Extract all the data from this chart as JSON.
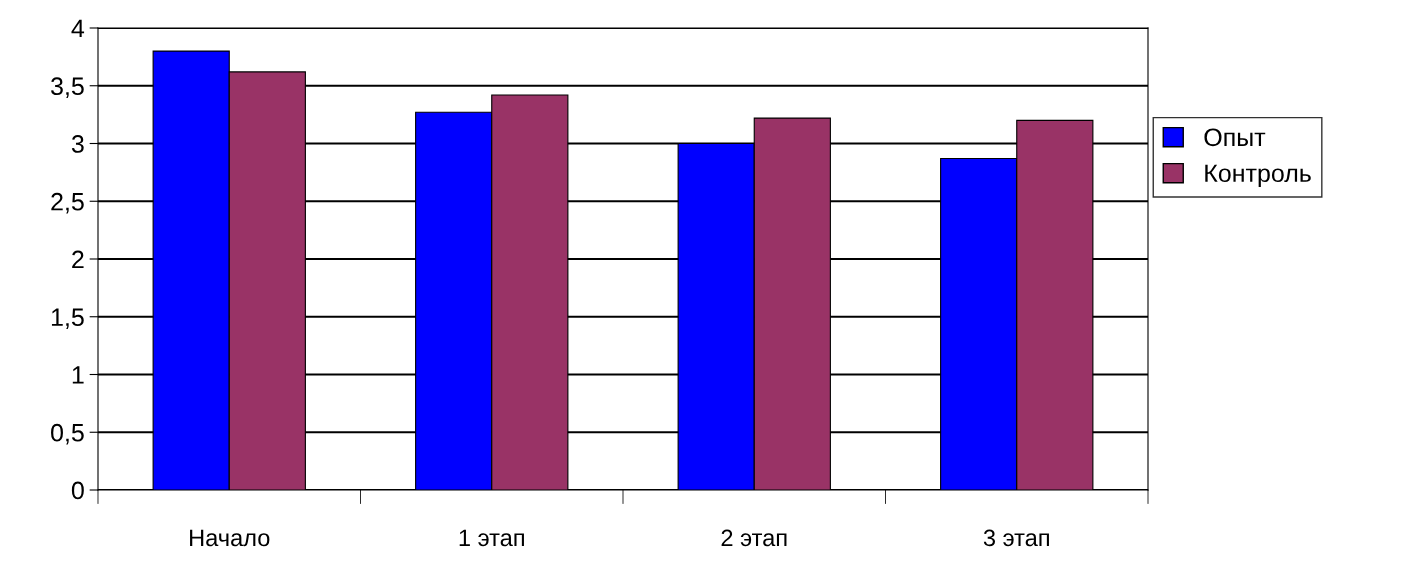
{
  "chart_data": {
    "type": "bar",
    "categories": [
      "Начало",
      "1 этап",
      "2 этап",
      "3 этап"
    ],
    "series": [
      {
        "name": "Опыт",
        "color": "#0000ff",
        "values": [
          3.8,
          3.27,
          3.0,
          2.87
        ]
      },
      {
        "name": "Контроль",
        "color": "#993366",
        "values": [
          3.62,
          3.42,
          3.22,
          3.2
        ]
      }
    ],
    "ylim": [
      0,
      4
    ],
    "yticks": [
      0,
      {
        "value": 0.5,
        "label": "0,5"
      },
      1,
      {
        "value": 1.5,
        "label": "1,5"
      },
      2,
      {
        "value": 2.5,
        "label": "2,5"
      },
      3,
      {
        "value": 3.5,
        "label": "3,5"
      },
      4
    ],
    "grid": "y",
    "legend": "right"
  }
}
